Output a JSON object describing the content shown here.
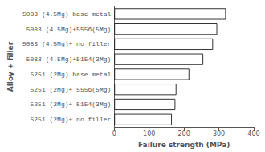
{
  "chart_data": {
    "type": "bar",
    "orientation": "horizontal",
    "categories": [
      "5251 (2Mg)+ no filler",
      "5251 (2Mg)+ 5154(3Mg)",
      "5251 (2Mg)+ 5556(5Mg)",
      "5251 (2Mg) base metal",
      "5083 (4.5Mg)+5154(3Mg)",
      "5083 (4.5Mg)+ no filler",
      "5083 (4.5Mg)+5556(5Mg)",
      "5083 (4.5Mg) base metal"
    ],
    "values": [
      165,
      175,
      178,
      215,
      255,
      283,
      295,
      320
    ],
    "color": "#ffffff",
    "xlabel": "Failure strength (MPa)",
    "ylabel": "Alloy + filler",
    "xlim": [
      0,
      400
    ],
    "xticks": [
      0,
      100,
      200,
      300,
      400
    ],
    "grid": false
  }
}
